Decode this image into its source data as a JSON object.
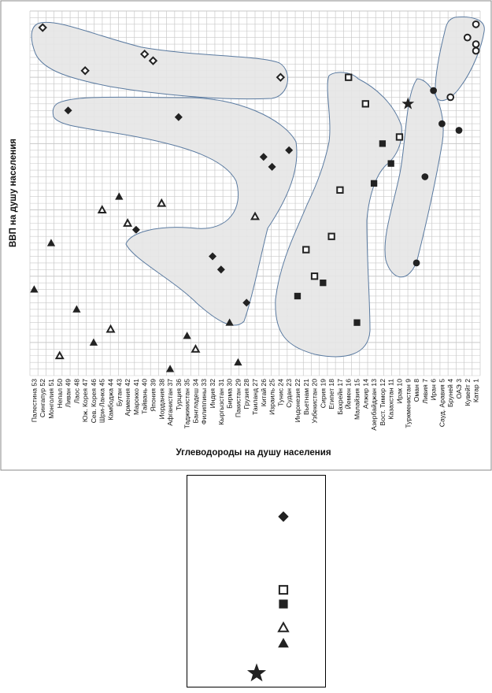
{
  "chart_data": {
    "type": "scatter",
    "xlabel": "Углеводороды на душу населения",
    "ylabel": "ВВП на душу населения",
    "categories": [
      "Палестина 53",
      "Сингапур 52",
      "Монголия 51",
      "Непал 50",
      "Ливан 49",
      "Лаос 48",
      "Юж. Корея 47",
      "Сев. Корея 46",
      "Шри-Ланка 45",
      "Камбоджа 44",
      "Бутан 43",
      "Армения 42",
      "Марокко 41",
      "Тайвань 40",
      "Япония 39",
      "Иордания 38",
      "Афганистан 37",
      "Турция 36",
      "Таджикистан 35",
      "Бангладеш 34",
      "Филиппины 33",
      "Индия 32",
      "Кыргызстан 31",
      "Бирма 30",
      "Пакистан 29",
      "Грузия 28",
      "Таиланд 27",
      "Китай 26",
      "Израиль 25",
      "Тунис 24",
      "Судан 23",
      "Индонезия 22",
      "Вьетнам 21",
      "Узбекистан 20",
      "Сирия 19",
      "Египет 18",
      "Бахрейн 17",
      "Йемен 16",
      "Малайзия 15",
      "Алжир 14",
      "Азербайджан 13",
      "Вост. Тимор 12",
      "Казахстан 11",
      "Ирак 10",
      "Туркменистан 9",
      "Оман 8",
      "Ливия 7",
      "Иран 6",
      "Сауд. Аравия 5",
      "Бруней 4",
      "ОАЭ 3",
      "Кувейт 2",
      "Катар 1"
    ],
    "ylim": [
      0,
      55
    ],
    "grid": true,
    "points": [
      {
        "x": "Палестина 53",
        "y": 13,
        "marker": "triangle-filled"
      },
      {
        "x": "Сингапур 52",
        "y": 52.5,
        "marker": "diamond-open"
      },
      {
        "x": "Монголия 51",
        "y": 20,
        "marker": "triangle-filled"
      },
      {
        "x": "Непал 50",
        "y": 3,
        "marker": "triangle-open"
      },
      {
        "x": "Ливан 49",
        "y": 40,
        "marker": "diamond-filled"
      },
      {
        "x": "Лаос 48",
        "y": 10,
        "marker": "triangle-filled"
      },
      {
        "x": "Юж. Корея 47",
        "y": 46,
        "marker": "diamond-open"
      },
      {
        "x": "Сев. Корея 46",
        "y": 5,
        "marker": "triangle-filled"
      },
      {
        "x": "Шри-Ланка 45",
        "y": 25,
        "marker": "triangle-open"
      },
      {
        "x": "Камбоджа 44",
        "y": 7,
        "marker": "triangle-open"
      },
      {
        "x": "Бутан 43",
        "y": 27,
        "marker": "triangle-filled"
      },
      {
        "x": "Армения 42",
        "y": 23,
        "marker": "triangle-open"
      },
      {
        "x": "Марокко 41",
        "y": 22,
        "marker": "diamond-filled"
      },
      {
        "x": "Тайвань 40",
        "y": 48.5,
        "marker": "diamond-open"
      },
      {
        "x": "Япония 39",
        "y": 47.5,
        "marker": "diamond-open"
      },
      {
        "x": "Иордания 38",
        "y": 26,
        "marker": "triangle-open"
      },
      {
        "x": "Афганистан 37",
        "y": 1,
        "marker": "triangle-filled"
      },
      {
        "x": "Турция 36",
        "y": 39,
        "marker": "diamond-filled"
      },
      {
        "x": "Таджикистан 35",
        "y": 6,
        "marker": "triangle-filled"
      },
      {
        "x": "Бангладеш 34",
        "y": 4,
        "marker": "triangle-open"
      },
      {
        "x": "Индия 32",
        "y": 18,
        "marker": "diamond-filled"
      },
      {
        "x": "Кыргызстан 31",
        "y": 16,
        "marker": "diamond-filled"
      },
      {
        "x": "Бирма 30",
        "y": 8,
        "marker": "triangle-filled"
      },
      {
        "x": "Пакистан 29",
        "y": 2,
        "marker": "triangle-filled"
      },
      {
        "x": "Грузия 28",
        "y": 11,
        "marker": "diamond-filled"
      },
      {
        "x": "Таиланд 27",
        "y": 24,
        "marker": "triangle-open"
      },
      {
        "x": "Китай 26",
        "y": 33,
        "marker": "diamond-filled"
      },
      {
        "x": "Израиль 25",
        "y": 31.5,
        "marker": "diamond-filled"
      },
      {
        "x": "Тунис 24",
        "y": 45,
        "marker": "diamond-open"
      },
      {
        "x": "Судан 23",
        "y": 34,
        "marker": "diamond-filled"
      },
      {
        "x": "Индонезия 22",
        "y": 12,
        "marker": "square-filled"
      },
      {
        "x": "Вьетнам 21",
        "y": 19,
        "marker": "square-open"
      },
      {
        "x": "Узбекистан 20",
        "y": 15,
        "marker": "square-open"
      },
      {
        "x": "Сирия 19",
        "y": 14,
        "marker": "square-filled"
      },
      {
        "x": "Египет 18",
        "y": 21,
        "marker": "square-open"
      },
      {
        "x": "Бахрейн 17",
        "y": 28,
        "marker": "square-open"
      },
      {
        "x": "Йемен 16",
        "y": 45,
        "marker": "square-open"
      },
      {
        "x": "Малайзия 15",
        "y": 8,
        "marker": "square-filled"
      },
      {
        "x": "Алжир 14",
        "y": 41,
        "marker": "square-open"
      },
      {
        "x": "Азербайджан 13",
        "y": 29,
        "marker": "square-filled"
      },
      {
        "x": "Вост. Тимор 12",
        "y": 35,
        "marker": "square-filled"
      },
      {
        "x": "Казахстан 11",
        "y": 32,
        "marker": "square-filled"
      },
      {
        "x": "Ирак 10",
        "y": 36,
        "marker": "square-open"
      },
      {
        "x": "Туркменистан 9",
        "y": 41,
        "marker": "star"
      },
      {
        "x": "Оман 8",
        "y": 17,
        "marker": "circle-filled"
      },
      {
        "x": "Ливия 7",
        "y": 30,
        "marker": "circle-filled"
      },
      {
        "x": "Иран 6",
        "y": 43,
        "marker": "circle-filled"
      },
      {
        "x": "Сауд. Аравия 5",
        "y": 38,
        "marker": "circle-filled"
      },
      {
        "x": "Бруней 4",
        "y": 42,
        "marker": "circle-open"
      },
      {
        "x": "ОАЭ 3",
        "y": 37,
        "marker": "circle-filled"
      },
      {
        "x": "Кувейт 2",
        "y": 51,
        "marker": "circle-open"
      },
      {
        "x": "Катар 1",
        "y": 50,
        "marker": "circle-open"
      },
      {
        "x": "Катар 1",
        "y": 49,
        "marker": "circle-open"
      },
      {
        "x": "Катар 1",
        "y": 53,
        "marker": "circle-open"
      }
    ],
    "legend": {
      "entries": [
        {
          "marker": "diamond-filled"
        },
        {
          "marker": "square-open"
        },
        {
          "marker": "square-filled"
        },
        {
          "marker": "triangle-open"
        },
        {
          "marker": "triangle-filled"
        },
        {
          "marker": "star"
        }
      ]
    }
  },
  "colors": {
    "grid": "#c9c9c9",
    "cluster_fill": "#e6e6e6",
    "cluster_stroke": "#5a7aa0",
    "marker": "#222222",
    "border": "#888888"
  }
}
